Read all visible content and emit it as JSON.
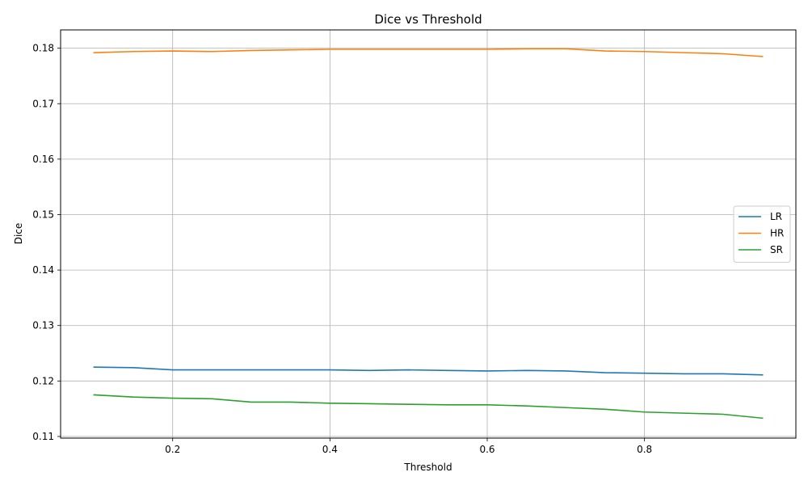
{
  "chart_data": {
    "type": "line",
    "title": "Dice vs Threshold",
    "xlabel": "Threshold",
    "ylabel": "Dice",
    "x": [
      0.1,
      0.15,
      0.2,
      0.25,
      0.3,
      0.35,
      0.4,
      0.45,
      0.5,
      0.55,
      0.6,
      0.65,
      0.7,
      0.75,
      0.8,
      0.85,
      0.9,
      0.95
    ],
    "xlim": [
      0.0575,
      0.9925
    ],
    "ylim": [
      0.1097,
      0.1833
    ],
    "xticks": [
      0.2,
      0.4,
      0.6,
      0.8
    ],
    "xtick_labels": [
      "0.2",
      "0.4",
      "0.6",
      "0.8"
    ],
    "yticks": [
      0.11,
      0.12,
      0.13,
      0.14,
      0.15,
      0.16,
      0.17,
      0.18
    ],
    "ytick_labels": [
      "0.11",
      "0.12",
      "0.13",
      "0.14",
      "0.15",
      "0.16",
      "0.17",
      "0.18"
    ],
    "grid": true,
    "legend_position": "center-right",
    "series": [
      {
        "name": "LR",
        "color": "#1f77b4",
        "values": [
          0.1225,
          0.1224,
          0.122,
          0.122,
          0.122,
          0.122,
          0.122,
          0.1219,
          0.122,
          0.1219,
          0.1218,
          0.1219,
          0.1218,
          0.1215,
          0.1214,
          0.1213,
          0.1213,
          0.1211
        ]
      },
      {
        "name": "HR",
        "color": "#ff7f0e",
        "values": [
          0.1792,
          0.1794,
          0.1795,
          0.1794,
          0.1796,
          0.1797,
          0.1798,
          0.1798,
          0.1798,
          0.1798,
          0.1798,
          0.1799,
          0.1799,
          0.1795,
          0.1794,
          0.1792,
          0.179,
          0.1785
        ]
      },
      {
        "name": "SR",
        "color": "#2ca02c",
        "values": [
          0.1175,
          0.1171,
          0.1169,
          0.1168,
          0.1162,
          0.1162,
          0.116,
          0.1159,
          0.1158,
          0.1157,
          0.1157,
          0.1155,
          0.1152,
          0.1149,
          0.1144,
          0.1142,
          0.114,
          0.1133
        ]
      }
    ]
  }
}
